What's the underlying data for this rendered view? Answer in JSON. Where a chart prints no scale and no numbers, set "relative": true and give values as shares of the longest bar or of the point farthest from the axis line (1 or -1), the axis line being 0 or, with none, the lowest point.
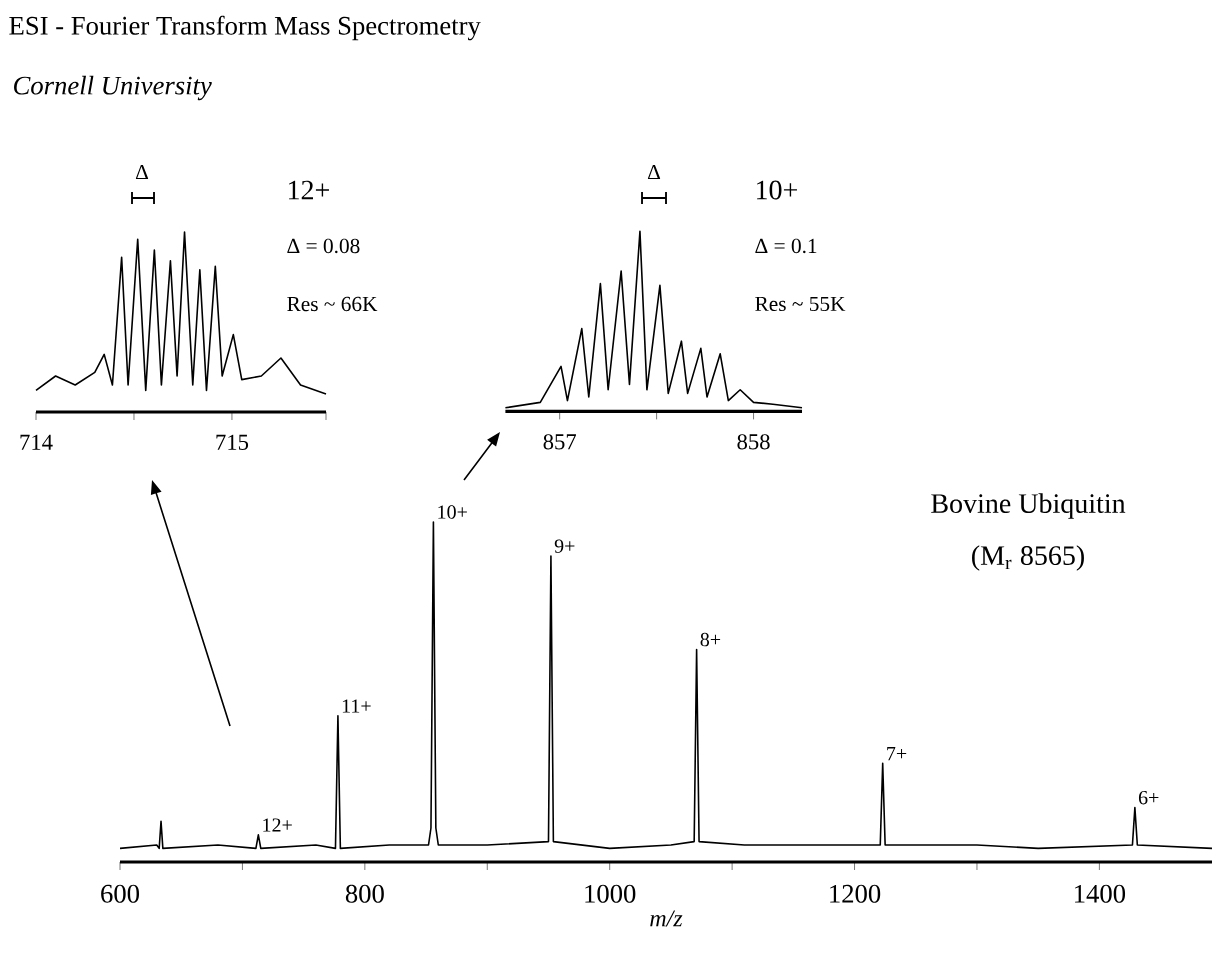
{
  "chart_data": [
    {
      "type": "line",
      "title": "ESI - Fourier Transform Mass Spectrometry",
      "subtitle": "Cornell University",
      "relative": true,
      "xlim": [
        714,
        715.48
      ],
      "xticks": [
        714,
        {
          "value": 714.5,
          "label": null
        },
        715,
        {
          "value": 715.48,
          "label": null
        }
      ],
      "x": [
        714.0,
        714.1,
        714.2,
        714.3,
        714.348,
        714.39,
        714.437,
        714.47,
        714.519,
        714.56,
        714.604,
        714.64,
        714.686,
        714.72,
        714.758,
        714.8,
        714.836,
        714.87,
        714.915,
        714.95,
        715.007,
        715.05,
        715.15,
        715.25,
        715.35,
        715.48
      ],
      "series": [
        {
          "color": "#000000",
          "values": [
            0.12,
            0.2,
            0.15,
            0.22,
            0.32,
            0.15,
            0.86,
            0.15,
            0.96,
            0.12,
            0.9,
            0.15,
            0.84,
            0.2,
            1.0,
            0.15,
            0.79,
            0.12,
            0.81,
            0.2,
            0.43,
            0.18,
            0.2,
            0.3,
            0.15,
            0.1
          ]
        }
      ],
      "annotations": [
        "Δ",
        "12+",
        "Δ = 0.08",
        "Res ~ 66K"
      ]
    },
    {
      "type": "line",
      "relative": true,
      "xlim": [
        856.72,
        858.25
      ],
      "xticks": [
        857,
        {
          "value": 857.5,
          "label": null
        },
        858
      ],
      "x": [
        856.72,
        856.9,
        857.007,
        857.04,
        857.114,
        857.15,
        857.21,
        857.25,
        857.317,
        857.36,
        857.414,
        857.45,
        857.517,
        857.56,
        857.628,
        857.66,
        857.728,
        857.76,
        857.828,
        857.87,
        857.931,
        858.0,
        858.1,
        858.25
      ],
      "series": [
        {
          "color": "#000000",
          "values": [
            0.02,
            0.05,
            0.25,
            0.06,
            0.46,
            0.08,
            0.71,
            0.12,
            0.78,
            0.15,
            1.0,
            0.12,
            0.7,
            0.1,
            0.39,
            0.1,
            0.35,
            0.08,
            0.32,
            0.06,
            0.12,
            0.05,
            0.04,
            0.02
          ]
        }
      ],
      "annotations": [
        "Δ",
        "10+",
        "Δ = 0.1",
        "Res ~ 55K"
      ]
    },
    {
      "type": "line",
      "xlabel": "m/z",
      "relative": true,
      "xlim": [
        600,
        1492
      ],
      "xticks": [
        600,
        {
          "value": 700,
          "label": null
        },
        800,
        {
          "value": 900,
          "label": null
        },
        1000,
        {
          "value": 1100,
          "label": null
        },
        1200,
        {
          "value": 1300,
          "label": null
        },
        1400
      ],
      "x": [
        600,
        630,
        632,
        633.5,
        635,
        680,
        711,
        713,
        715,
        760,
        776,
        778,
        780,
        820,
        852,
        854,
        856,
        858,
        860,
        900,
        950,
        952,
        954,
        1000,
        1050,
        1069,
        1071,
        1073,
        1110,
        1150,
        1221,
        1223,
        1225,
        1300,
        1350,
        1427,
        1429,
        1431,
        1492
      ],
      "series": [
        {
          "color": "#000000",
          "values": [
            0.04,
            0.05,
            0.04,
            0.12,
            0.04,
            0.05,
            0.04,
            0.08,
            0.04,
            0.05,
            0.04,
            0.43,
            0.04,
            0.05,
            0.05,
            0.1,
            1.0,
            0.1,
            0.05,
            0.05,
            0.06,
            0.9,
            0.06,
            0.04,
            0.05,
            0.06,
            0.625,
            0.06,
            0.05,
            0.05,
            0.05,
            0.29,
            0.05,
            0.05,
            0.04,
            0.05,
            0.16,
            0.05,
            0.04
          ]
        }
      ],
      "annotations": [
        "Bovine Ubiquitin",
        "(M$_{r}$ 8565)",
        {
          "text": "12+",
          "x": 713,
          "y": 0.08
        },
        {
          "text": "11+",
          "x": 778,
          "y": 0.43
        },
        {
          "text": "10+",
          "x": 856,
          "y": 1.0
        },
        {
          "text": "9+",
          "x": 952,
          "y": 0.9
        },
        {
          "text": "8+",
          "x": 1071,
          "y": 0.625
        },
        {
          "text": "7+",
          "x": 1223,
          "y": 0.29
        },
        {
          "text": "6+",
          "x": 1429,
          "y": 0.16
        }
      ]
    }
  ]
}
